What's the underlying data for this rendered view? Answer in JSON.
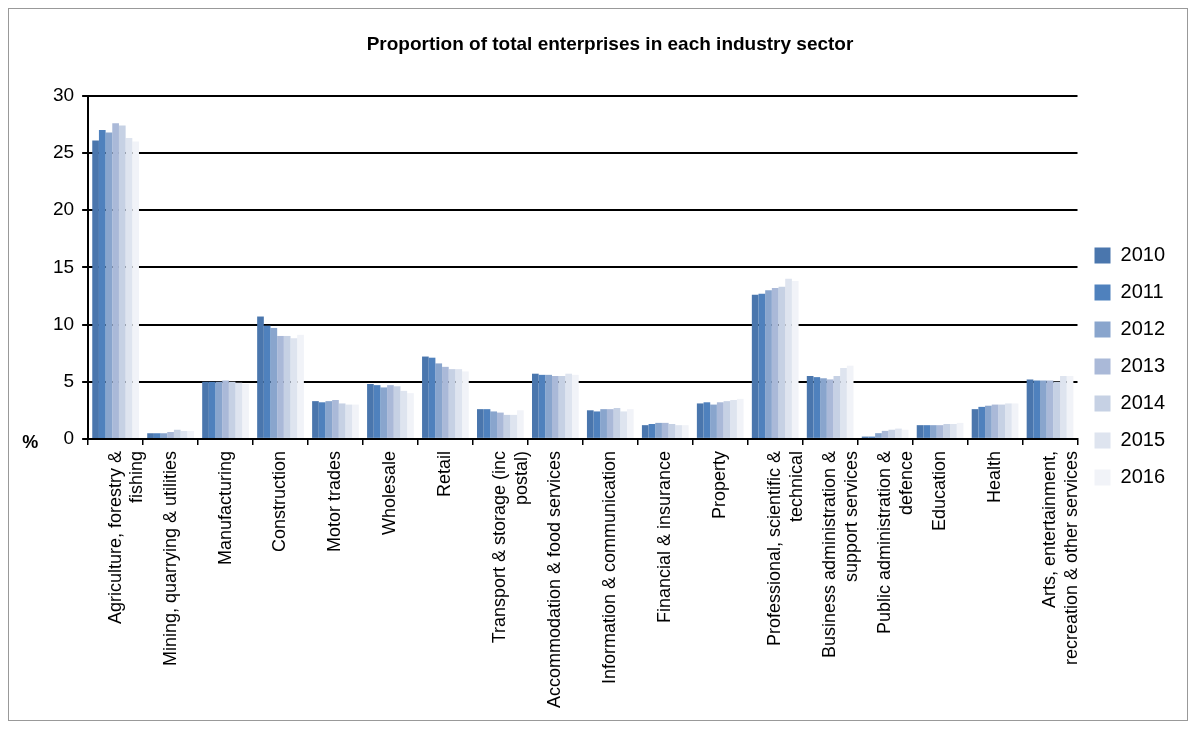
{
  "chart_data": {
    "type": "bar",
    "title": "Proportion of total enterprises in each industry sector",
    "ylabel": "%",
    "categories": [
      "Agriculture, forestry & fishing",
      "Mining, quarrying & utilities",
      "Manufacturing",
      "Construction",
      "Motor trades",
      "Wholesale",
      "Retail",
      "Transport & storage (inc postal)",
      "Accommodation & food services",
      "Information & communication",
      "Financial & insurance",
      "Property",
      "Professional, scientific & technical",
      "Business administration & support services",
      "Public administration & defence",
      "Education",
      "Health",
      "Arts, entertainment, recreation & other services"
    ],
    "series": [
      {
        "name": "2010",
        "color": "#4a76ad",
        "values": [
          26.1,
          0.5,
          5.0,
          10.7,
          3.3,
          4.8,
          7.2,
          2.6,
          5.7,
          2.5,
          1.2,
          3.1,
          12.6,
          5.5,
          0.2,
          1.2,
          2.6,
          5.2
        ]
      },
      {
        "name": "2011",
        "color": "#4f81bd",
        "values": [
          27.0,
          0.5,
          5.0,
          9.9,
          3.2,
          4.7,
          7.1,
          2.6,
          5.6,
          2.4,
          1.3,
          3.2,
          12.7,
          5.4,
          0.2,
          1.2,
          2.8,
          5.1
        ]
      },
      {
        "name": "2012",
        "color": "#89a5cd",
        "values": [
          26.8,
          0.5,
          5.0,
          9.7,
          3.3,
          4.5,
          6.6,
          2.4,
          5.6,
          2.6,
          1.4,
          3.0,
          13.0,
          5.3,
          0.5,
          1.2,
          2.9,
          5.1
        ]
      },
      {
        "name": "2013",
        "color": "#aab9d8",
        "values": [
          27.6,
          0.6,
          5.1,
          9.0,
          3.4,
          4.7,
          6.3,
          2.3,
          5.5,
          2.6,
          1.4,
          3.2,
          13.2,
          5.2,
          0.7,
          1.2,
          3.0,
          5.1
        ]
      },
      {
        "name": "2014",
        "color": "#c6d1e4",
        "values": [
          27.4,
          0.8,
          5.0,
          9.0,
          3.1,
          4.6,
          6.1,
          2.1,
          5.5,
          2.7,
          1.3,
          3.3,
          13.3,
          5.5,
          0.8,
          1.3,
          3.0,
          5.0
        ]
      },
      {
        "name": "2015",
        "color": "#dee4ef",
        "values": [
          26.3,
          0.7,
          4.9,
          8.8,
          3.0,
          4.2,
          6.1,
          2.1,
          5.7,
          2.4,
          1.2,
          3.4,
          14.0,
          6.2,
          0.9,
          1.3,
          3.1,
          5.5
        ]
      },
      {
        "name": "2016",
        "color": "#f1f3f8",
        "values": [
          26.0,
          0.7,
          4.8,
          9.1,
          3.0,
          4.0,
          5.9,
          2.5,
          5.6,
          2.6,
          1.2,
          3.5,
          13.8,
          6.4,
          0.8,
          1.4,
          3.1,
          5.5
        ]
      }
    ],
    "ylim": [
      0,
      30
    ],
    "yticks": [
      0,
      5,
      10,
      15,
      20,
      25,
      30
    ],
    "grid": "y",
    "legend": "right"
  }
}
